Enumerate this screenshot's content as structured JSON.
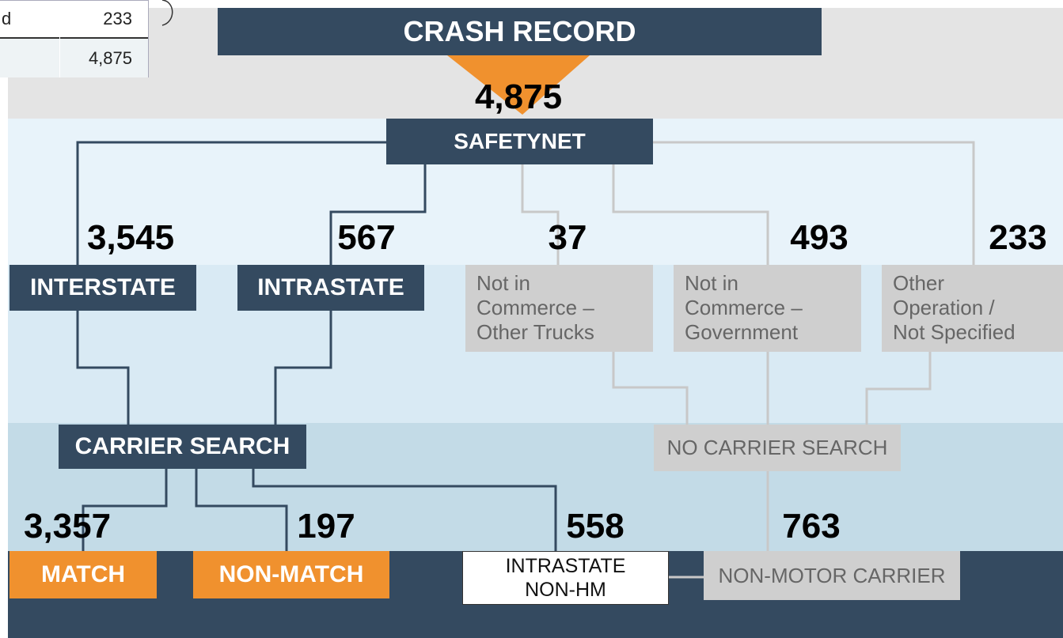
{
  "table": {
    "rows": [
      {
        "label": "d",
        "value": "233"
      },
      {
        "value": "4,875"
      }
    ]
  },
  "nodes": {
    "crash_record": "CRASH RECORD",
    "safetynet": "SAFETYNET",
    "interstate": "INTERSTATE",
    "intrastate": "INTRASTATE",
    "not_commerce_other": [
      "Not in",
      "Commerce –",
      "Other Trucks"
    ],
    "not_commerce_gov": [
      "Not in",
      "Commerce –",
      "Government"
    ],
    "other_operation": [
      "Other",
      "Operation /",
      "Not Specified"
    ],
    "carrier_search": "CARRIER SEARCH",
    "no_carrier_search": "NO CARRIER SEARCH",
    "match": "MATCH",
    "non_match": "NON-MATCH",
    "intrastate_non_hm": [
      "INTRASTATE",
      "NON-HM"
    ],
    "non_motor_carrier": "NON-MOTOR CARRIER"
  },
  "counts": {
    "crash_record": "4,875",
    "interstate": "3,545",
    "intrastate": "567",
    "not_commerce_other": "37",
    "not_commerce_gov": "493",
    "other_operation": "233",
    "match": "3,357",
    "non_match": "197",
    "intrastate_non_hm": "558",
    "non_motor_carrier": "763"
  }
}
